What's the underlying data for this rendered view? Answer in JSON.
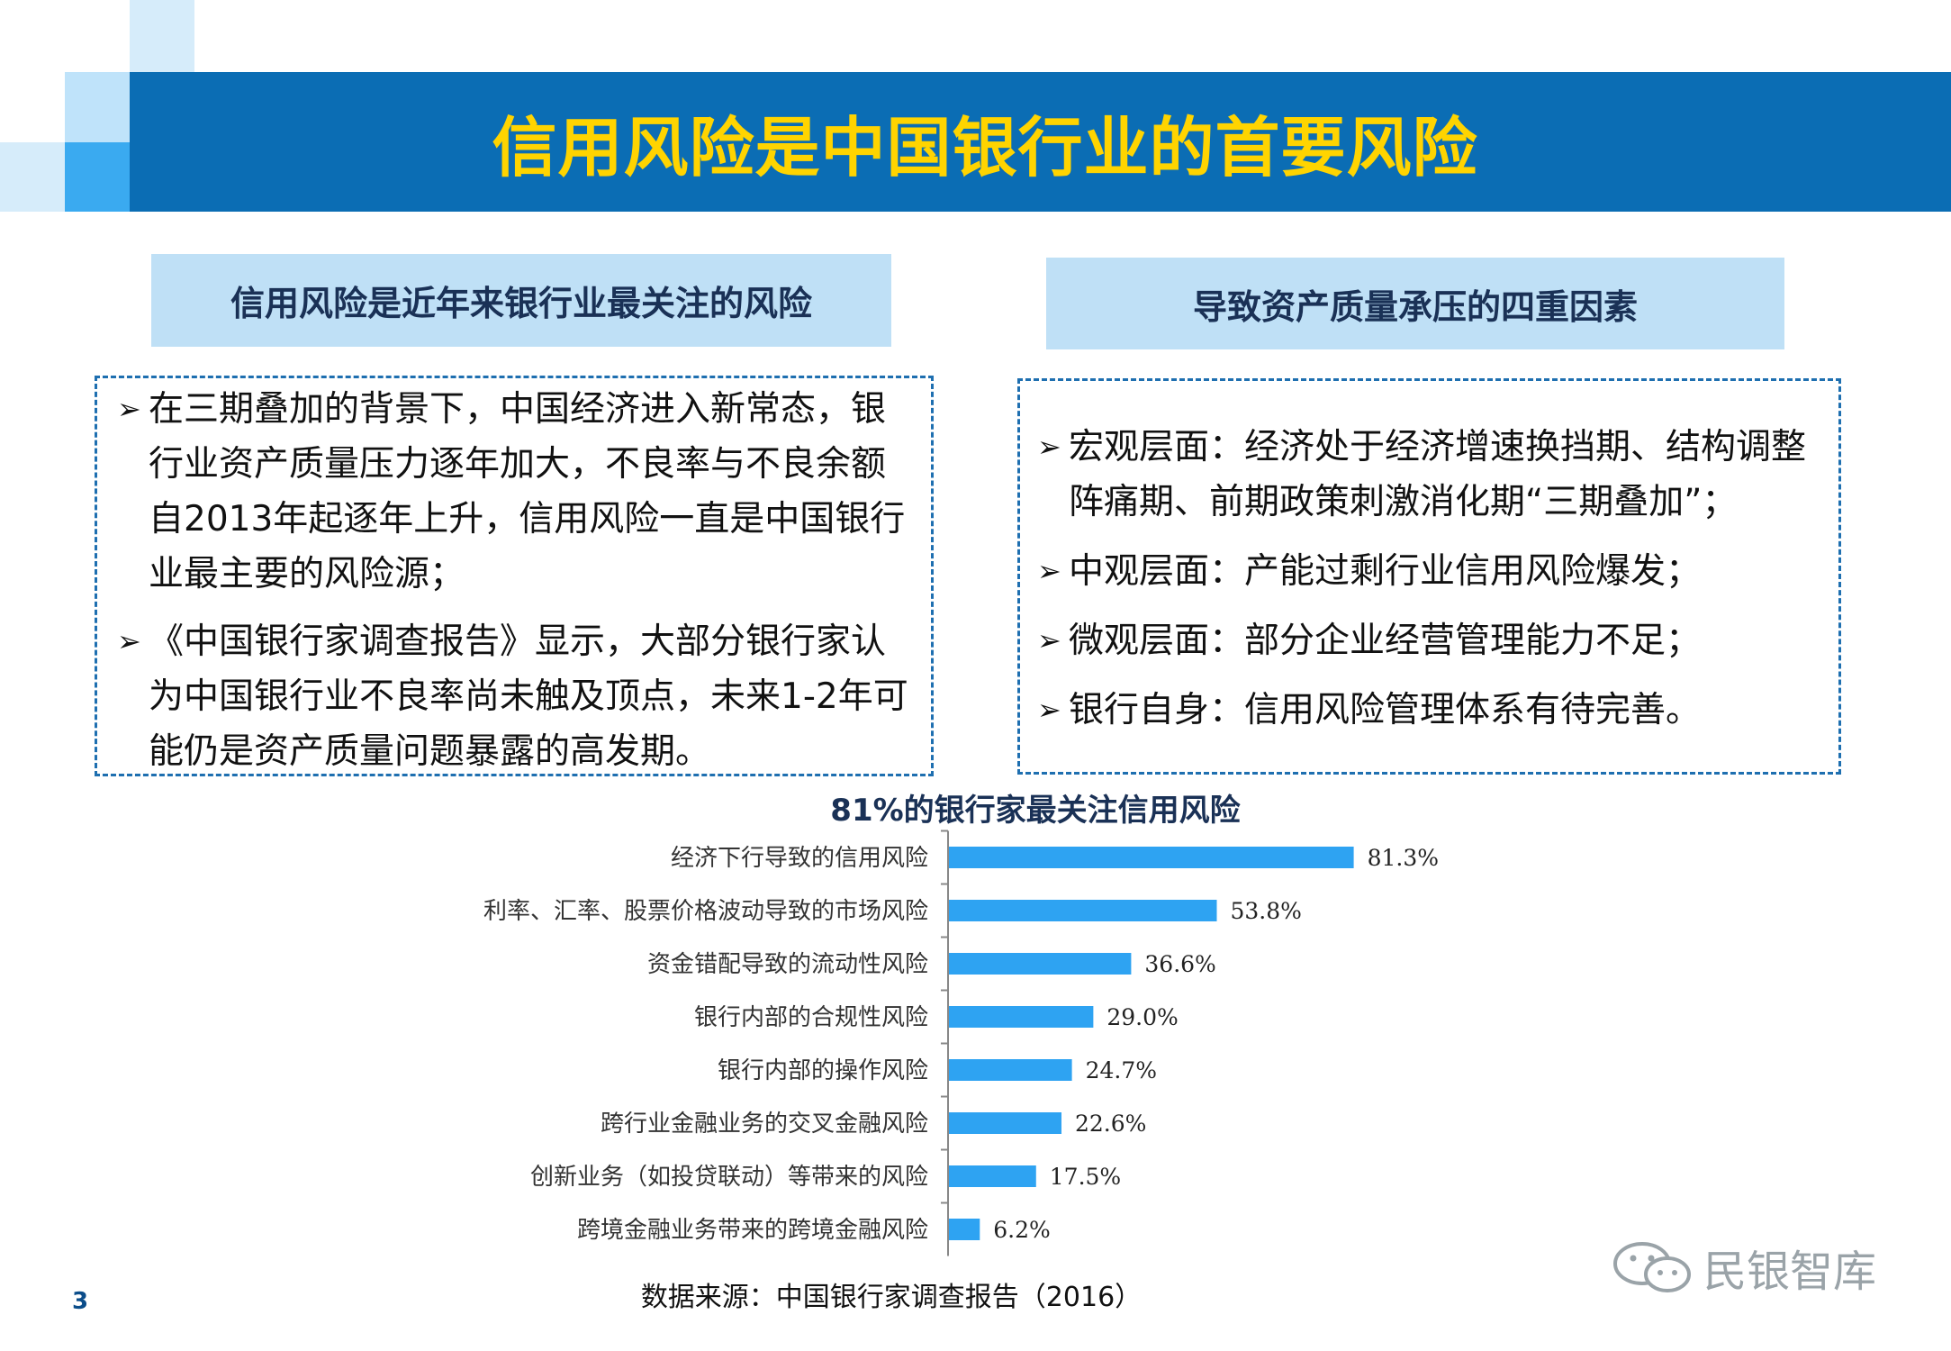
{
  "page": {
    "title": "信用风险是中国银行业的首要风险",
    "page_number": "3",
    "source": "数据来源：中国银行家调查报告（2016）",
    "watermark": "民银智库"
  },
  "left_panel": {
    "heading": "信用风险是近年来银行业最关注的风险",
    "bullets": [
      {
        "lines": [
          "在三期叠加的背景下，中国经济进入新常态，银",
          "行业资产质量压力逐年加大，不良率与不良余额",
          "自2013年起逐年上升，信用风险一直是中国银行",
          "业最主要的风险源；"
        ]
      },
      {
        "lines": [
          "《中国银行家调查报告》显示，大部分银行家认",
          "为中国银行业不良率尚未触及顶点，未来1-2年可",
          "能仍是资产质量问题暴露的高发期。"
        ]
      }
    ]
  },
  "right_panel": {
    "heading": "导致资产质量承压的四重因素",
    "bullets": [
      {
        "lines": [
          "宏观层面：经济处于经济增速换挡期、结构调整",
          "阵痛期、前期政策刺激消化期“三期叠加”；"
        ]
      },
      {
        "lines": [
          "中观层面：产能过剩行业信用风险爆发；"
        ]
      },
      {
        "lines": [
          "微观层面：部分企业经营管理能力不足；"
        ]
      },
      {
        "lines": [
          "银行自身：信用风险管理体系有待完善。"
        ]
      }
    ]
  },
  "bullet_symbol": "➢",
  "colors": {
    "banner": "#0b6db4",
    "title_text": "#ffd400",
    "subheading_bg": "#bfe0f6",
    "bar": "#2ea3f2",
    "dashed_border": "#1e6fb0"
  },
  "chart_data": {
    "type": "bar",
    "orientation": "horizontal",
    "title": "81%的银行家最关注信用风险",
    "categories": [
      "经济下行导致的信用风险",
      "利率、汇率、股票价格波动导致的市场风险",
      "资金错配导致的流动性风险",
      "银行内部的合规性风险",
      "银行内部的操作风险",
      "跨行业金融业务的交叉金融风险",
      "创新业务（如投贷联动）等带来的风险",
      "跨境金融业务带来的跨境金融风险"
    ],
    "values": [
      81.3,
      53.8,
      36.6,
      29.0,
      24.7,
      22.6,
      17.5,
      6.2
    ],
    "value_labels": [
      "81.3%",
      "53.8%",
      "36.6%",
      "29.0%",
      "24.7%",
      "22.6%",
      "17.5%",
      "6.2%"
    ],
    "xlim": [
      0,
      100
    ],
    "grid": false,
    "legend": "none"
  }
}
